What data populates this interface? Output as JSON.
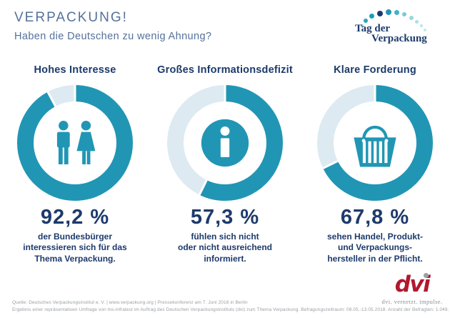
{
  "header": {
    "title": "VERPACKUNG!",
    "subtitle": "Haben die Deutschen zu wenig Ahnung?"
  },
  "logo": {
    "line1": "Tag der",
    "line2": "Verpackung"
  },
  "chart_data": [
    {
      "type": "donut",
      "title": "Hohes Interesse",
      "value": 92.2,
      "value_label": "92,2 %",
      "icon": "people-icon",
      "description": [
        "der Bundesbürger",
        "interessieren sich für das",
        "Thema Verpackung."
      ]
    },
    {
      "type": "donut",
      "title": "Großes Informationsdefizit",
      "value": 57.3,
      "value_label": "57,3 %",
      "icon": "info-icon",
      "description": [
        "fühlen sich nicht",
        "oder nicht ausreichend",
        "informiert."
      ]
    },
    {
      "type": "donut",
      "title": "Klare Forderung",
      "value": 67.8,
      "value_label": "67,8 %",
      "icon": "basket-icon",
      "description": [
        "sehen Handel, Produkt-",
        "und Verpackungs-",
        "hersteller in der Pflicht."
      ]
    }
  ],
  "colors": {
    "teal": "#2196b4",
    "ring_bg": "#ddeaf2",
    "navy": "#1d3a6b",
    "header_blue": "#54719b",
    "dvi_red": "#b1182e"
  },
  "footer": {
    "line1": "Quelle: Deutsches Verpackungsinstitut e. V. | www.verpackung.org | Pressekonferenz am 7. Juni 2018 in Berlin",
    "line2": "Ergebnis einer repräsentativen Umfrage von tns-infratest im Auftrag des Deutschen Verpackungsinstituts (dvi) zum Thema Verpackung. Befragungszeitraum: 08.05.-13.05.2018. Anzahl der Befragten: 1.049."
  },
  "dvi": {
    "logo_text": "dvi",
    "tagline": "dvi. vernetzt. impulse."
  }
}
